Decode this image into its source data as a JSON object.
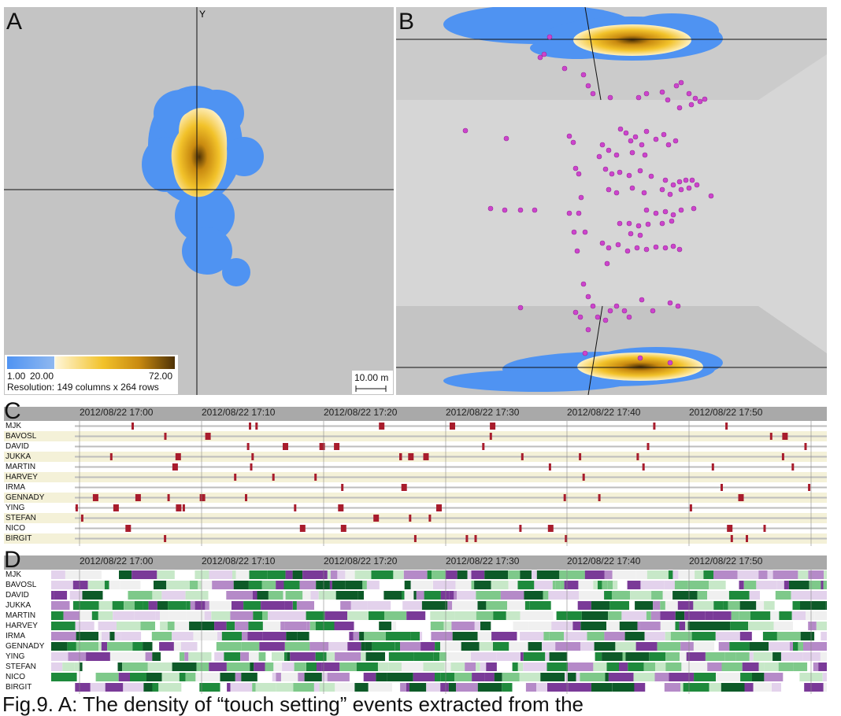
{
  "panel_labels": {
    "a": "A",
    "b": "B",
    "c": "C",
    "d": "D"
  },
  "panel_a": {
    "axis_label_y": "Y",
    "legend": {
      "min": "1.00",
      "mid": "20.00",
      "max": "72.00",
      "resolution": "Resolution: 149 columns x 264 rows"
    },
    "scale": "10.00 m"
  },
  "timeline": {
    "ticks": [
      "2012/08/22 17:00",
      "2012/08/22 17:10",
      "2012/08/22 17:20",
      "2012/08/22 17:30",
      "2012/08/22 17:40",
      "2012/08/22 17:50"
    ],
    "names": [
      "MJK",
      "BAVOSL",
      "DAVID",
      "JUKKA",
      "MARTIN",
      "HARVEY",
      "IRMA",
      "GENNADY",
      "YING",
      "STEFAN",
      "NICO",
      "BIRGIT"
    ]
  },
  "colors": {
    "blue": "#4f93f2",
    "gold": "#f2c22a",
    "dark": "#4e3206",
    "marker": "#cc44cc",
    "event": "#a81c2c",
    "green": "#1e8a3c",
    "purple": "#7a3a98"
  },
  "caption": "Fig.9. A: The density of “touch setting” events extracted from the"
}
